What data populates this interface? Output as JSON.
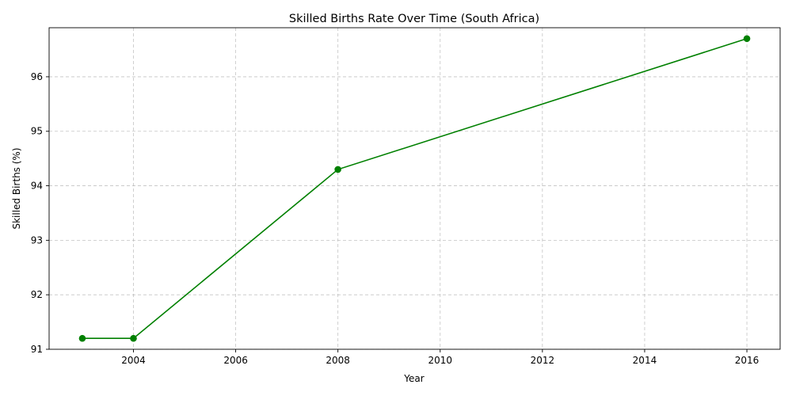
{
  "chart_data": {
    "type": "line",
    "title": "Skilled Births Rate Over Time (South Africa)",
    "xlabel": "Year",
    "ylabel": "Skilled Births (%)",
    "x": [
      2003,
      2004,
      2008,
      2016
    ],
    "series": [
      {
        "values": [
          91.2,
          91.2,
          94.3,
          96.7
        ],
        "color": "#008000",
        "marker": "circle"
      }
    ],
    "xlim": [
      2002.35,
      2016.65
    ],
    "ylim": [
      91.0,
      96.9
    ],
    "xticks": [
      2004,
      2006,
      2008,
      2010,
      2012,
      2014,
      2016
    ],
    "yticks": [
      91,
      92,
      93,
      94,
      95,
      96
    ],
    "grid": true
  }
}
